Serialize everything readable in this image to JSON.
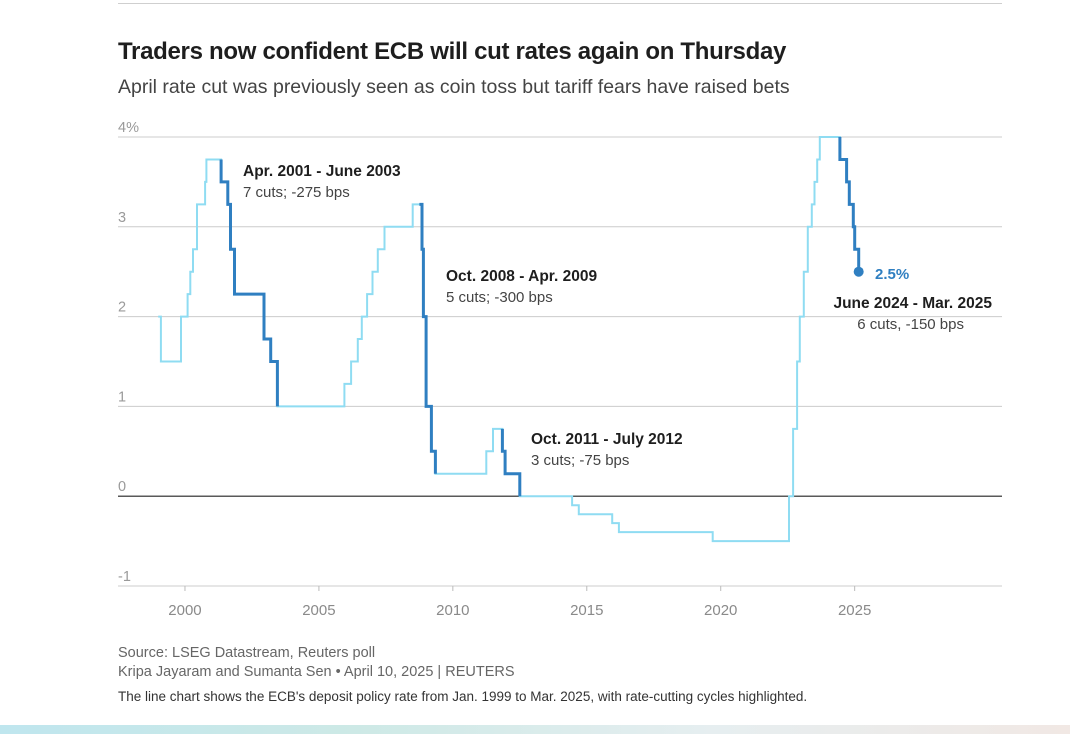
{
  "header": {
    "title": "Traders now confident ECB will cut rates again on Thursday",
    "subtitle": "April rate cut was previously seen as coin toss but tariff fears have raised bets"
  },
  "footer": {
    "source": "Source: LSEG Datastream, Reuters poll",
    "credit": "Kripa Jayaram and Sumanta Sen • April 10, 2025 | REUTERS",
    "description": "The line chart shows the ECB's deposit policy rate from Jan. 1999 to Mar. 2025, with rate-cutting cycles highlighted."
  },
  "chart_data": {
    "type": "line",
    "title": "Traders now confident ECB will cut rates again on Thursday",
    "xlabel": "",
    "ylabel": "",
    "xlim": [
      1997.5,
      2030.5
    ],
    "ylim": [
      -1,
      4
    ],
    "x_ticks": [
      2000,
      2005,
      2010,
      2015,
      2020,
      2025
    ],
    "x_tick_labels": [
      "2000",
      "2005",
      "2010",
      "2015",
      "2020",
      "2025"
    ],
    "y_ticks": [
      4,
      3,
      2,
      1,
      0,
      -1
    ],
    "y_tick_labels": [
      "4%",
      "3",
      "2",
      "1",
      "0",
      "-1"
    ],
    "colors": {
      "base": "#8fdcf2",
      "highlight": "#2f7fc1",
      "grid": "#cccccc",
      "zero": "#222222",
      "endpoint_label": "#2f7fc1"
    },
    "series": [
      {
        "name": "ECB deposit rate (%)",
        "step": true,
        "points": [
          [
            1999.0,
            2.0
          ],
          [
            1999.1,
            1.5
          ],
          [
            1999.85,
            2.0
          ],
          [
            2000.1,
            2.25
          ],
          [
            2000.2,
            2.5
          ],
          [
            2000.3,
            2.75
          ],
          [
            2000.45,
            3.25
          ],
          [
            2000.75,
            3.5
          ],
          [
            2000.8,
            3.75
          ],
          [
            2001.35,
            3.5
          ],
          [
            2001.6,
            3.25
          ],
          [
            2001.7,
            2.75
          ],
          [
            2001.85,
            2.25
          ],
          [
            2002.95,
            1.75
          ],
          [
            2003.2,
            1.5
          ],
          [
            2003.45,
            1.0
          ],
          [
            2005.95,
            1.25
          ],
          [
            2006.2,
            1.5
          ],
          [
            2006.45,
            1.75
          ],
          [
            2006.6,
            2.0
          ],
          [
            2006.8,
            2.25
          ],
          [
            2007.0,
            2.5
          ],
          [
            2007.2,
            2.75
          ],
          [
            2007.45,
            3.0
          ],
          [
            2008.5,
            3.25
          ],
          [
            2008.75,
            3.25
          ],
          [
            2008.85,
            2.75
          ],
          [
            2008.9,
            2.0
          ],
          [
            2009.0,
            1.0
          ],
          [
            2009.2,
            0.5
          ],
          [
            2009.35,
            0.25
          ],
          [
            2011.25,
            0.5
          ],
          [
            2011.5,
            0.75
          ],
          [
            2011.85,
            0.5
          ],
          [
            2011.95,
            0.25
          ],
          [
            2012.5,
            0.0
          ],
          [
            2014.45,
            -0.1
          ],
          [
            2014.7,
            -0.2
          ],
          [
            2015.95,
            -0.3
          ],
          [
            2016.2,
            -0.4
          ],
          [
            2019.7,
            -0.5
          ],
          [
            2022.55,
            0.0
          ],
          [
            2022.7,
            0.75
          ],
          [
            2022.85,
            1.5
          ],
          [
            2022.95,
            2.0
          ],
          [
            2023.1,
            2.5
          ],
          [
            2023.25,
            3.0
          ],
          [
            2023.4,
            3.25
          ],
          [
            2023.5,
            3.5
          ],
          [
            2023.6,
            3.75
          ],
          [
            2023.7,
            4.0
          ],
          [
            2024.45,
            3.75
          ],
          [
            2024.7,
            3.5
          ],
          [
            2024.8,
            3.25
          ],
          [
            2024.95,
            3.0
          ],
          [
            2025.0,
            2.75
          ],
          [
            2025.15,
            2.5
          ]
        ]
      }
    ],
    "highlights": [
      {
        "x_start": 2001.35,
        "x_end": 2003.45,
        "label": "Apr. 2001 - June 2003",
        "detail": "7 cuts; -275 bps"
      },
      {
        "x_start": 2008.75,
        "x_end": 2009.35,
        "label": "Oct. 2008 - Apr. 2009",
        "detail": "5 cuts; -300 bps"
      },
      {
        "x_start": 2011.85,
        "x_end": 2012.5,
        "label": "Oct. 2011 - July 2012",
        "detail": "3 cuts; -75 bps"
      },
      {
        "x_start": 2024.45,
        "x_end": 2025.15,
        "label": "June 2024 - Mar. 2025",
        "detail": "6 cuts, -150 bps"
      }
    ],
    "endpoint": {
      "x": 2025.15,
      "y": 2.5,
      "label": "2.5%"
    }
  }
}
